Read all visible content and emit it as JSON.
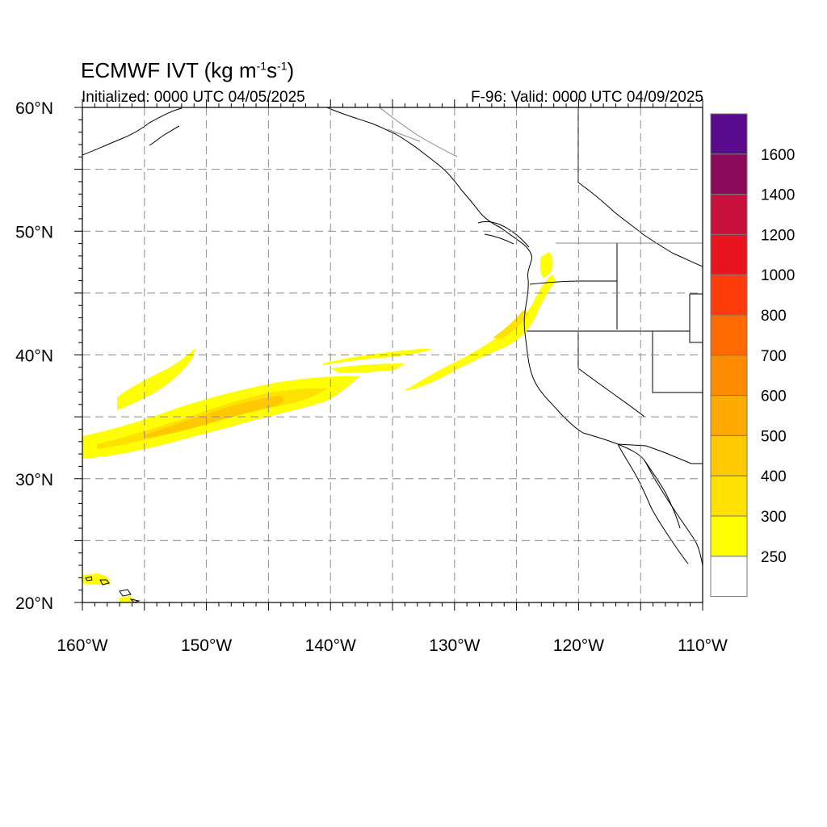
{
  "header": {
    "title_main": "ECMWF IVT (kg m",
    "title_exp1": "-1",
    "title_mid": "s",
    "title_exp2": "-1",
    "title_end": ")",
    "initialized": "Initialized: 0000 UTC 04/05/2025",
    "valid": "F-96: Valid: 0000 UTC 04/09/2025"
  },
  "map": {
    "projection": "cylindrical",
    "lon_range": [
      -160,
      -110
    ],
    "lat_range": [
      20,
      60
    ],
    "grid": "dashed every 5 degrees",
    "lat_labels": [
      "60°N",
      "50°N",
      "40°N",
      "30°N",
      "20°N"
    ],
    "lon_labels": [
      "160°W",
      "150°W",
      "140°W",
      "130°W",
      "120°W",
      "110°W"
    ]
  },
  "colorbar": {
    "labels": [
      "1600",
      "1400",
      "1200",
      "1000",
      "800",
      "700",
      "600",
      "500",
      "400",
      "300",
      "250"
    ],
    "colors": [
      "#5a0a8c",
      "#8c0a5c",
      "#c8103c",
      "#e8141e",
      "#ff3c0a",
      "#ff6a00",
      "#ff8c00",
      "#ffaa00",
      "#ffc800",
      "#ffe100",
      "#ffff00",
      "#ffffff"
    ]
  },
  "ivt_plume": {
    "colors": {
      "low": "#ffff00",
      "mid": "#ffe100",
      "high": "#ffc800"
    }
  }
}
